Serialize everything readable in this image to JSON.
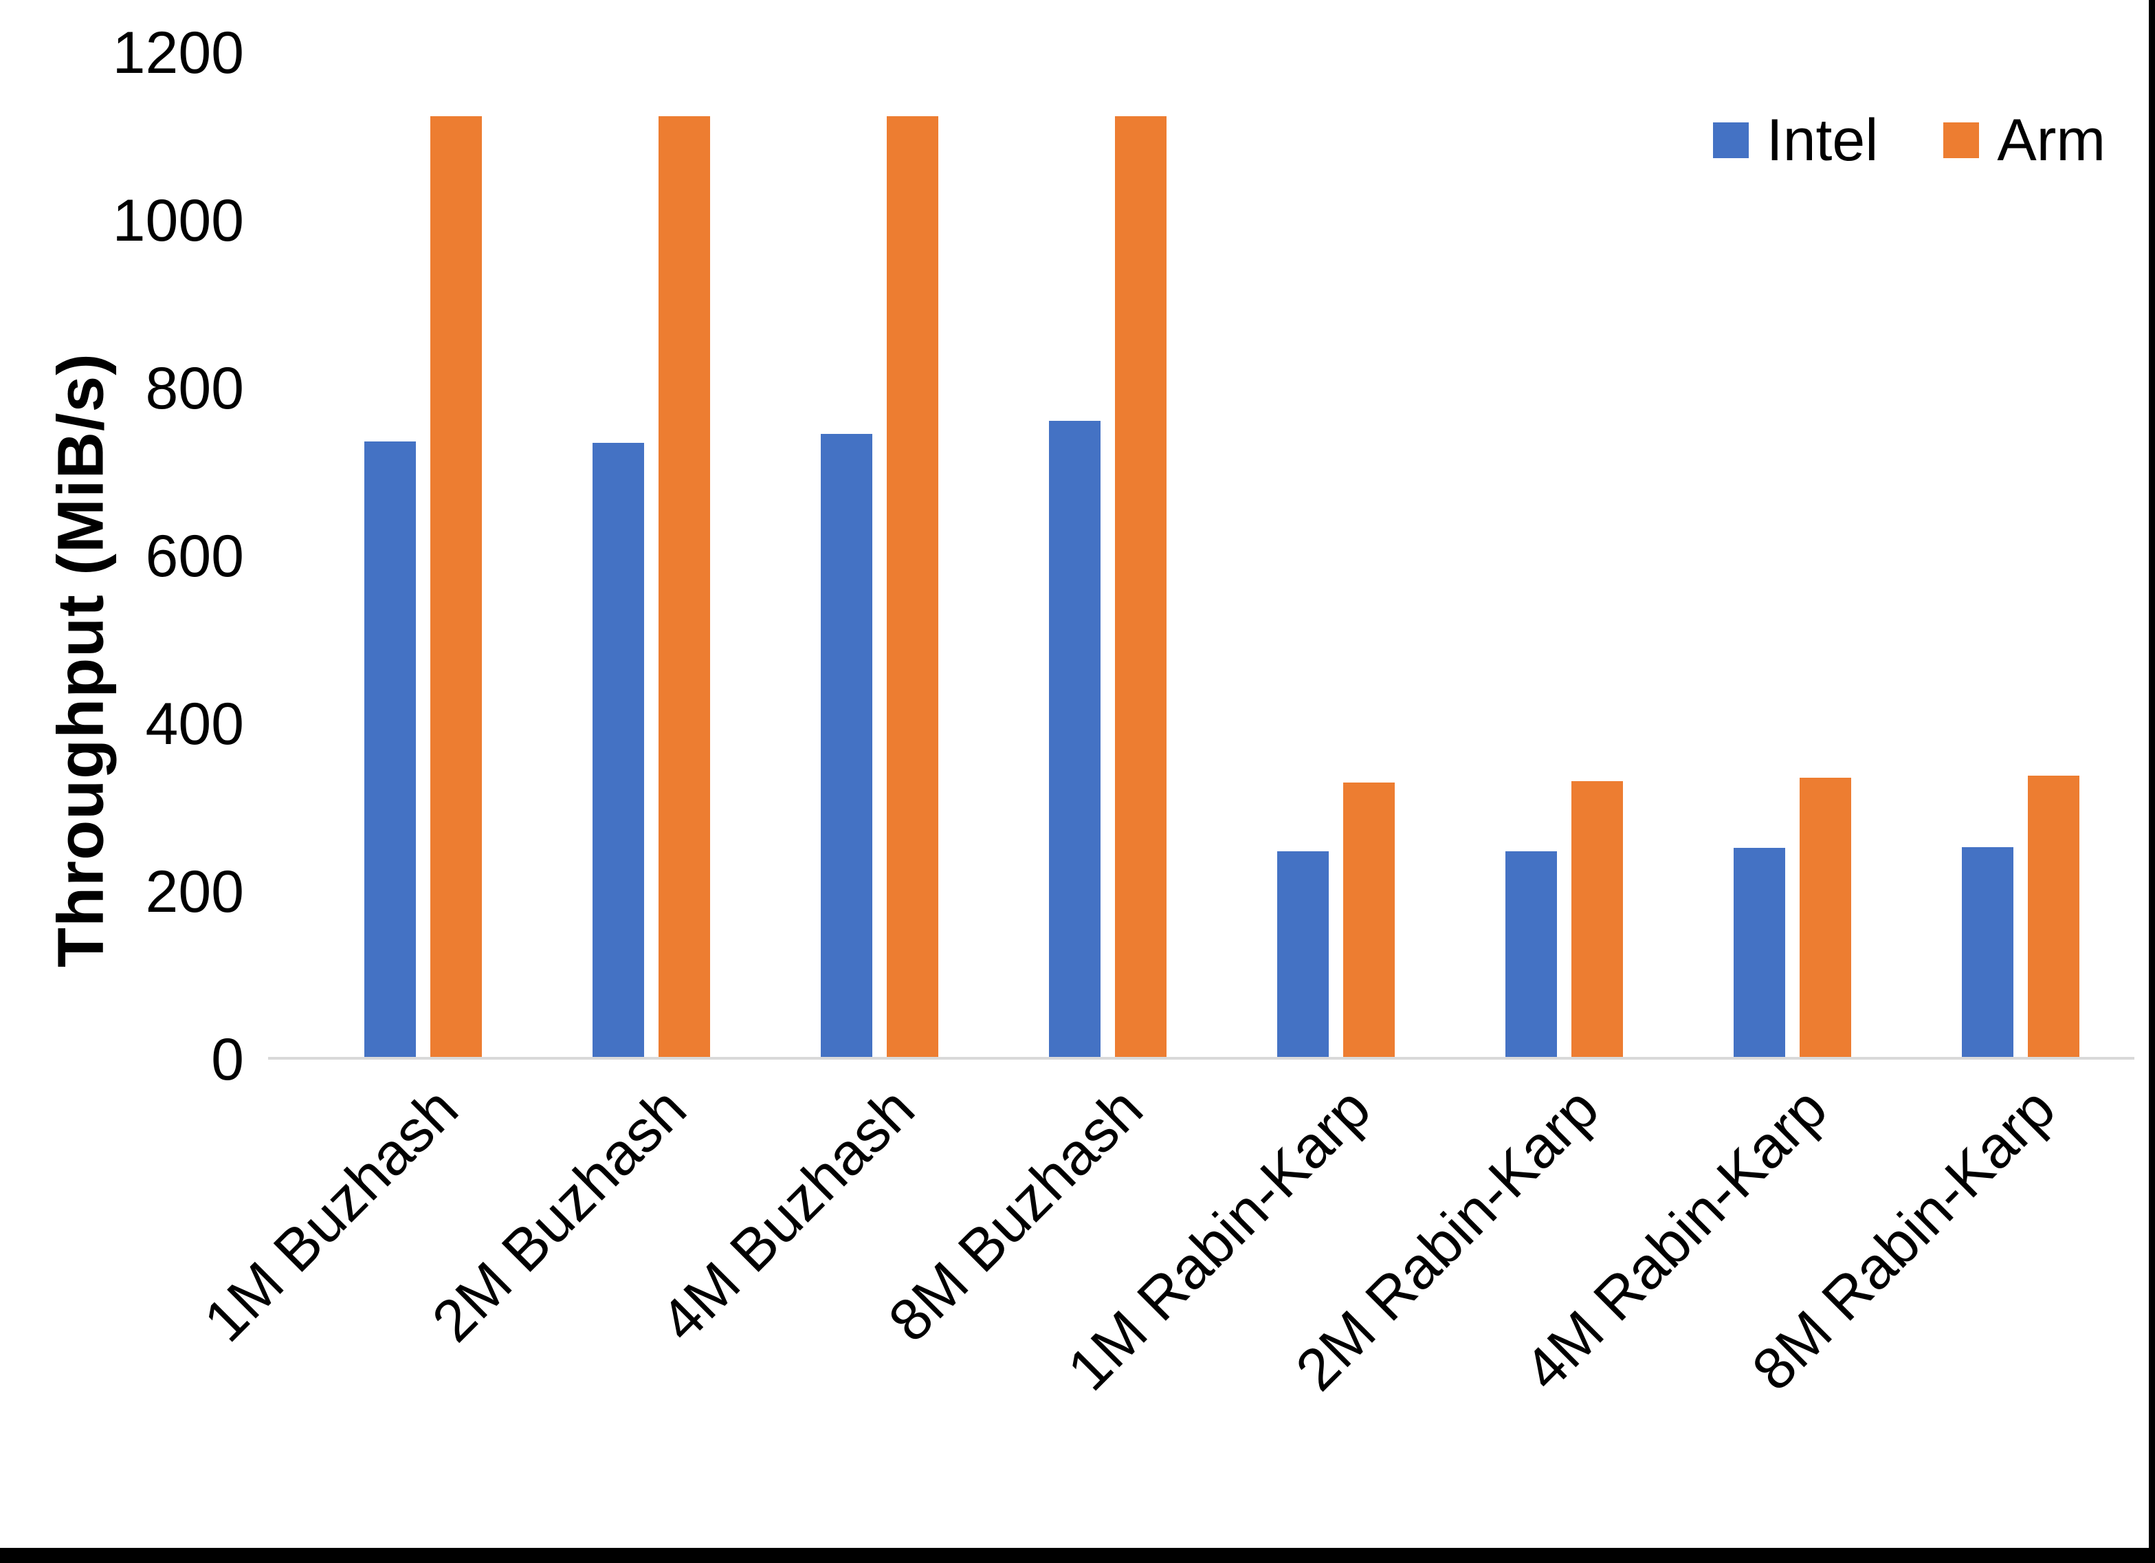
{
  "colors": {
    "background": "#FFFFFF",
    "text": "#000000",
    "axis_line": "#D9D9D9",
    "frame": "#000000",
    "intel": "#4472C4",
    "arm": "#ED7D31"
  },
  "chart_data": {
    "type": "bar",
    "title": "",
    "xlabel": "",
    "ylabel": "Throughput (MiB/s)",
    "ylim": [
      0,
      1200
    ],
    "yticks": [
      0,
      200,
      400,
      600,
      800,
      1000,
      1200
    ],
    "grid": false,
    "legend_position": "top-right",
    "categories": [
      "1M Buzhash",
      "2M Buzhash",
      "4M Buzhash",
      "8M Buzhash",
      "1M Rabin-Karp",
      "2M Rabin-Karp",
      "4M Rabin-Karp",
      "8M Rabin-Karp"
    ],
    "series": [
      {
        "name": "Intel",
        "color": "#4472C4",
        "values": [
          736,
          734,
          745,
          760,
          246,
          246,
          250,
          251
        ]
      },
      {
        "name": "Arm",
        "color": "#ED7D31",
        "values": [
          1124,
          1124,
          1124,
          1124,
          328,
          330,
          334,
          336
        ]
      }
    ]
  }
}
